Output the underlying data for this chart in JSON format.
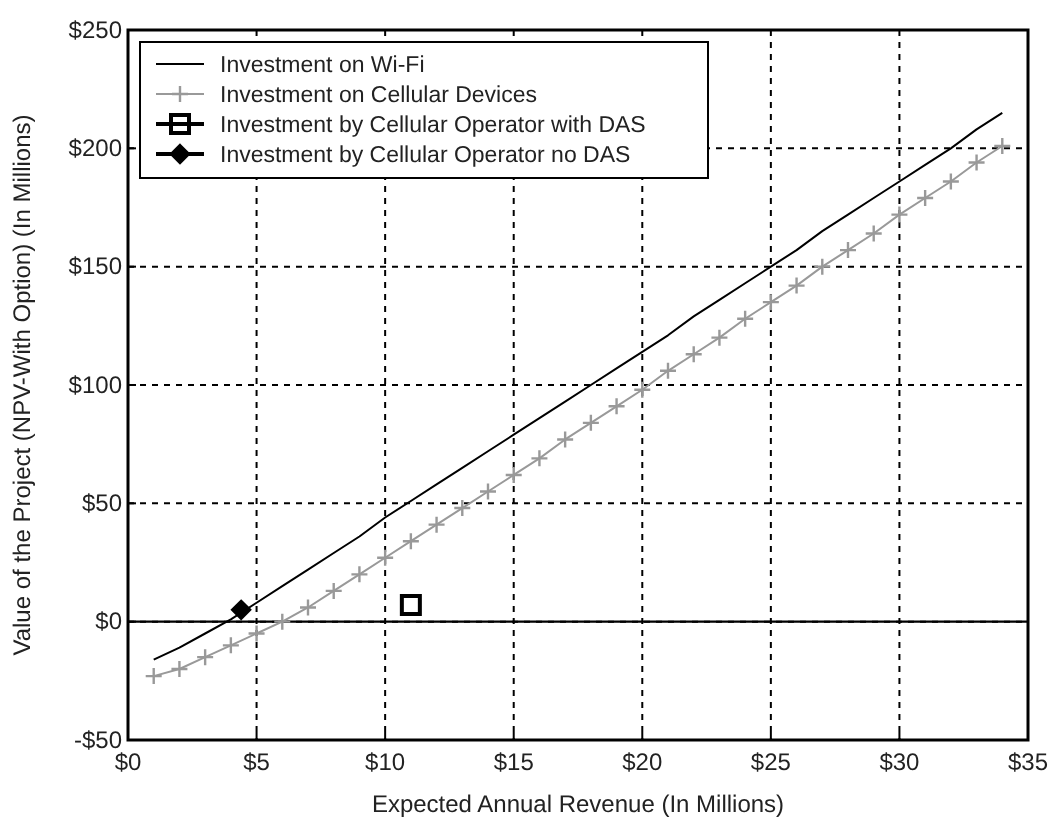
{
  "chart_data": {
    "type": "line",
    "xlabel": "Expected Annual Revenue (In Millions)",
    "ylabel": "Value of the Project (NPV-With Option) (In Millions)",
    "xlim": [
      0,
      35
    ],
    "ylim": [
      -50,
      250
    ],
    "xticks": [
      {
        "value": 0,
        "label": "$0"
      },
      {
        "value": 5,
        "label": "$5"
      },
      {
        "value": 10,
        "label": "$10"
      },
      {
        "value": 15,
        "label": "$15"
      },
      {
        "value": 20,
        "label": "$20"
      },
      {
        "value": 25,
        "label": "$25"
      },
      {
        "value": 30,
        "label": "$30"
      },
      {
        "value": 35,
        "label": "$35"
      }
    ],
    "yticks": [
      {
        "value": -50,
        "label": "-$50"
      },
      {
        "value": 0,
        "label": "$0"
      },
      {
        "value": 50,
        "label": "$50"
      },
      {
        "value": 100,
        "label": "$100"
      },
      {
        "value": 150,
        "label": "$150"
      },
      {
        "value": 200,
        "label": "$200"
      },
      {
        "value": 250,
        "label": "$250"
      }
    ],
    "grid": true,
    "legend": "top left",
    "line_style": "solid",
    "ref_lines": [
      {
        "axis": "y",
        "value": 0,
        "color": "#000000",
        "line_style": "solid"
      }
    ],
    "series": [
      {
        "name": "Investment on Wi-Fi",
        "color": "#000000",
        "marker": "none",
        "x": [
          1,
          2,
          3,
          4,
          5,
          6,
          7,
          8,
          9,
          10,
          11,
          12,
          13,
          14,
          15,
          16,
          17,
          18,
          19,
          20,
          21,
          22,
          23,
          24,
          25,
          26,
          27,
          28,
          29,
          30,
          31,
          32,
          33,
          34
        ],
        "values": [
          -16,
          -11,
          -5,
          1,
          8,
          15,
          22,
          29,
          36,
          44,
          51,
          58,
          65,
          72,
          79,
          86,
          93,
          100,
          107,
          114,
          121,
          129,
          136,
          143,
          150,
          157,
          165,
          172,
          179,
          186,
          193,
          200,
          208,
          215
        ]
      },
      {
        "name": "Investment on Cellular Devices",
        "color": "#999999",
        "marker": "cross",
        "x": [
          1,
          2,
          3,
          4,
          5,
          6,
          7,
          8,
          9,
          10,
          11,
          12,
          13,
          14,
          15,
          16,
          17,
          18,
          19,
          20,
          21,
          22,
          23,
          24,
          25,
          26,
          27,
          28,
          29,
          30,
          31,
          32,
          33,
          34
        ],
        "values": [
          -23,
          -20,
          -15,
          -10,
          -5,
          0,
          6,
          13,
          20,
          27,
          34,
          41,
          48,
          55,
          62,
          69,
          77,
          84,
          91,
          98,
          106,
          113,
          120,
          128,
          135,
          142,
          150,
          157,
          164,
          172,
          179,
          186,
          194,
          201
        ]
      },
      {
        "name": "Investment by Cellular Operator with DAS",
        "type": "scatter",
        "color": "#000000",
        "marker": "square",
        "x": [
          11
        ],
        "values": [
          7
        ]
      },
      {
        "name": "Investment by Cellular Operator no DAS",
        "type": "scatter",
        "color": "#000000",
        "marker": "diamond",
        "x": [
          4.4
        ],
        "values": [
          5
        ]
      }
    ]
  }
}
